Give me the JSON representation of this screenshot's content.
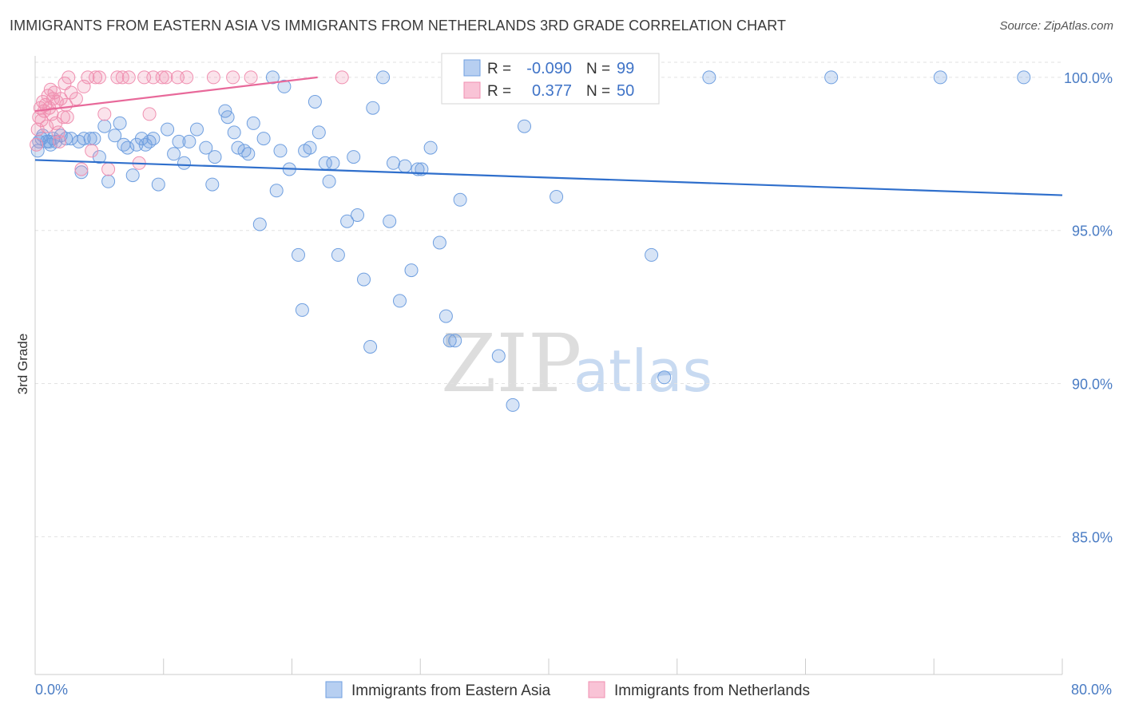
{
  "title": "IMMIGRANTS FROM EASTERN ASIA VS IMMIGRANTS FROM NETHERLANDS 3RD GRADE CORRELATION CHART",
  "source": "Source: ZipAtlas.com",
  "watermark": {
    "zip": "ZIP",
    "atlas": "atlas"
  },
  "colors": {
    "blue": "#6f9fe0",
    "blue_line": "#2f6fcc",
    "pink": "#f08fb0",
    "pink_line": "#e8699a",
    "label_blue": "#4a7cc4"
  },
  "chart_data": {
    "type": "scatter",
    "ylabel": "3rd Grade",
    "xlabel": "",
    "xlim": [
      0,
      80
    ],
    "ylim": [
      80.5,
      100.7
    ],
    "y_ticks": [
      100,
      95,
      90,
      85
    ],
    "y_tick_labels": [
      "100.0%",
      "95.0%",
      "90.0%",
      "85.0%"
    ],
    "x_tick_labels": {
      "min": "0.0%",
      "max": "80.0%"
    },
    "grid": true,
    "legend_position": "top-center",
    "stats": [
      {
        "r_label": "R =",
        "r": "-0.090",
        "n_label": "N =",
        "n": "99"
      },
      {
        "r_label": "R =",
        "r": "0.377",
        "n_label": "N =",
        "n": "50"
      }
    ],
    "series": [
      {
        "name": "Immigrants from Eastern Asia",
        "color": "#6f9fe0",
        "trend": {
          "x": [
            0,
            80
          ],
          "y": [
            97.3,
            96.15
          ]
        },
        "points": [
          [
            0.3,
            97.9
          ],
          [
            0.6,
            98.1
          ],
          [
            0.9,
            97.9
          ],
          [
            1.1,
            97.9
          ],
          [
            1.4,
            98.0
          ],
          [
            1.6,
            97.9
          ],
          [
            2.0,
            98.1
          ],
          [
            2.4,
            98.0
          ],
          [
            2.8,
            98.0
          ],
          [
            3.4,
            97.9
          ],
          [
            3.6,
            96.9
          ],
          [
            3.8,
            98.0
          ],
          [
            4.3,
            98.0
          ],
          [
            4.6,
            98.0
          ],
          [
            5.0,
            97.4
          ],
          [
            5.4,
            98.4
          ],
          [
            5.7,
            96.6
          ],
          [
            6.2,
            98.1
          ],
          [
            6.6,
            98.5
          ],
          [
            6.9,
            97.8
          ],
          [
            7.2,
            97.7
          ],
          [
            7.6,
            96.8
          ],
          [
            7.9,
            97.8
          ],
          [
            8.3,
            98.0
          ],
          [
            8.6,
            97.8
          ],
          [
            8.9,
            97.9
          ],
          [
            9.2,
            98.0
          ],
          [
            9.6,
            96.5
          ],
          [
            10.3,
            98.3
          ],
          [
            10.8,
            97.5
          ],
          [
            11.2,
            97.9
          ],
          [
            11.6,
            97.2
          ],
          [
            12.0,
            97.9
          ],
          [
            12.6,
            98.3
          ],
          [
            13.3,
            97.7
          ],
          [
            13.8,
            96.5
          ],
          [
            14.0,
            97.4
          ],
          [
            14.8,
            98.9
          ],
          [
            15.0,
            98.7
          ],
          [
            15.5,
            98.2
          ],
          [
            15.8,
            97.7
          ],
          [
            16.3,
            97.6
          ],
          [
            16.6,
            97.5
          ],
          [
            17.0,
            98.5
          ],
          [
            17.5,
            95.2
          ],
          [
            17.8,
            98.0
          ],
          [
            18.5,
            100.0
          ],
          [
            18.8,
            96.3
          ],
          [
            19.1,
            97.6
          ],
          [
            19.8,
            97.0
          ],
          [
            20.5,
            94.2
          ],
          [
            20.8,
            92.4
          ],
          [
            21.0,
            97.6
          ],
          [
            21.4,
            97.7
          ],
          [
            21.8,
            99.2
          ],
          [
            22.1,
            98.2
          ],
          [
            22.6,
            97.2
          ],
          [
            22.9,
            96.6
          ],
          [
            23.2,
            97.2
          ],
          [
            23.6,
            94.2
          ],
          [
            24.3,
            95.3
          ],
          [
            24.8,
            97.4
          ],
          [
            25.1,
            95.5
          ],
          [
            25.6,
            93.4
          ],
          [
            26.1,
            91.2
          ],
          [
            26.3,
            99.0
          ],
          [
            27.1,
            100.0
          ],
          [
            27.6,
            95.3
          ],
          [
            27.9,
            97.2
          ],
          [
            28.4,
            92.7
          ],
          [
            28.8,
            97.1
          ],
          [
            29.3,
            93.7
          ],
          [
            29.8,
            97.0
          ],
          [
            30.1,
            97.0
          ],
          [
            30.8,
            97.7
          ],
          [
            31.5,
            94.6
          ],
          [
            32.0,
            92.2
          ],
          [
            32.3,
            91.4
          ],
          [
            32.7,
            91.4
          ],
          [
            33.1,
            96.0
          ],
          [
            34.2,
            100.0
          ],
          [
            35.4,
            100.0
          ],
          [
            36.1,
            90.9
          ],
          [
            37.2,
            89.3
          ],
          [
            37.8,
            100.0
          ],
          [
            38.1,
            98.4
          ],
          [
            39.5,
            100.0
          ],
          [
            40.6,
            96.1
          ],
          [
            42.0,
            100.0
          ],
          [
            48.0,
            94.2
          ],
          [
            49.0,
            90.2
          ],
          [
            52.5,
            100.0
          ],
          [
            62.0,
            100.0
          ],
          [
            70.5,
            100.0
          ],
          [
            77.0,
            100.0
          ],
          [
            0.2,
            97.6
          ],
          [
            0.5,
            98.0
          ],
          [
            19.4,
            99.7
          ],
          [
            1.2,
            97.8
          ]
        ]
      },
      {
        "name": "Immigrants from Netherlands",
        "color": "#f08fb0",
        "trend": {
          "x": [
            0,
            22
          ],
          "y": [
            98.9,
            100.0
          ]
        },
        "points": [
          [
            0.1,
            97.8
          ],
          [
            0.2,
            98.3
          ],
          [
            0.3,
            98.7
          ],
          [
            0.4,
            99.0
          ],
          [
            0.5,
            98.6
          ],
          [
            0.6,
            99.2
          ],
          [
            0.7,
            98.9
          ],
          [
            0.8,
            99.1
          ],
          [
            0.9,
            98.4
          ],
          [
            1.0,
            99.4
          ],
          [
            1.1,
            99.0
          ],
          [
            1.2,
            99.6
          ],
          [
            1.3,
            98.8
          ],
          [
            1.4,
            99.3
          ],
          [
            1.5,
            99.5
          ],
          [
            1.6,
            98.5
          ],
          [
            1.7,
            99.2
          ],
          [
            1.8,
            98.2
          ],
          [
            1.9,
            97.9
          ],
          [
            2.0,
            99.3
          ],
          [
            2.2,
            98.7
          ],
          [
            2.3,
            99.8
          ],
          [
            2.4,
            99.1
          ],
          [
            2.5,
            98.7
          ],
          [
            2.6,
            100.0
          ],
          [
            2.8,
            99.5
          ],
          [
            3.2,
            99.3
          ],
          [
            3.6,
            97.0
          ],
          [
            3.8,
            99.7
          ],
          [
            4.1,
            100.0
          ],
          [
            4.4,
            97.6
          ],
          [
            4.7,
            100.0
          ],
          [
            5.0,
            100.0
          ],
          [
            5.4,
            98.8
          ],
          [
            5.7,
            97.0
          ],
          [
            6.4,
            100.0
          ],
          [
            6.8,
            100.0
          ],
          [
            7.3,
            100.0
          ],
          [
            8.1,
            97.2
          ],
          [
            8.5,
            100.0
          ],
          [
            8.9,
            98.8
          ],
          [
            9.2,
            100.0
          ],
          [
            9.9,
            100.0
          ],
          [
            10.2,
            100.0
          ],
          [
            11.1,
            100.0
          ],
          [
            11.8,
            100.0
          ],
          [
            13.9,
            100.0
          ],
          [
            15.4,
            100.0
          ],
          [
            16.8,
            100.0
          ],
          [
            23.9,
            100.0
          ]
        ]
      }
    ]
  }
}
